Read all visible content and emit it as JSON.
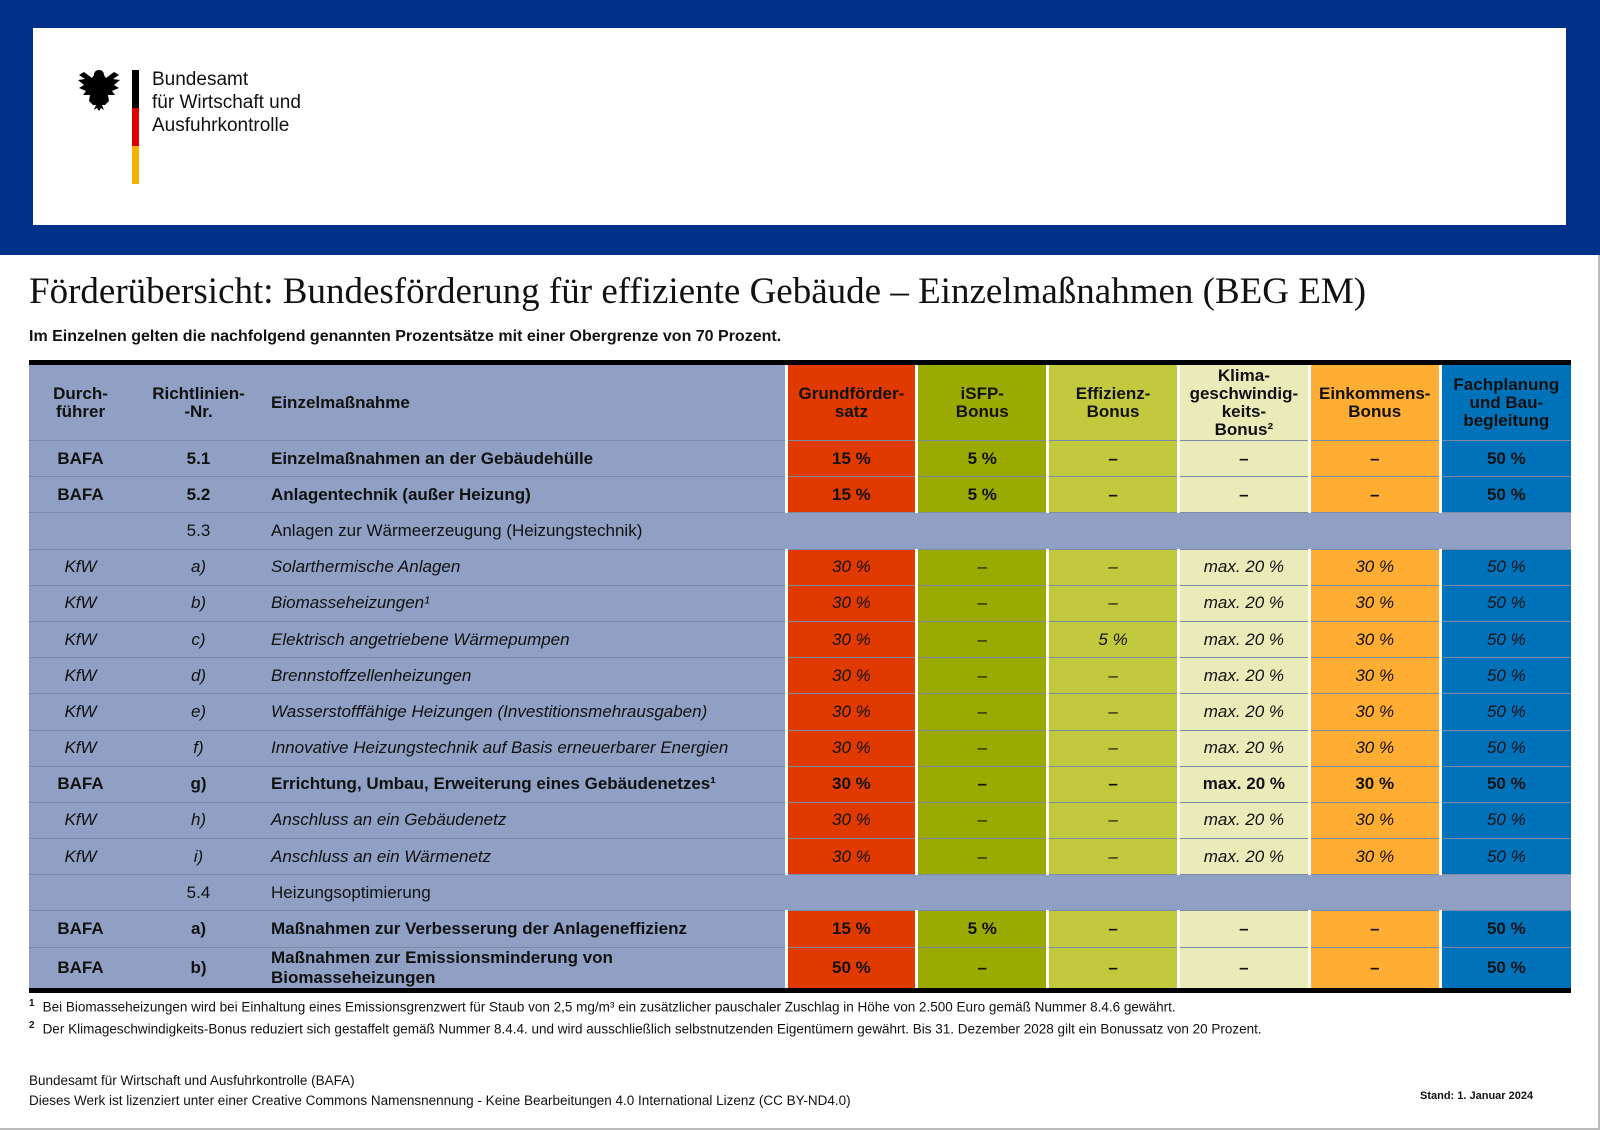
{
  "header": {
    "logo_lines": [
      "Bundesamt",
      "für Wirtschaft und",
      "Ausfuhrkontrolle"
    ],
    "colors": {
      "bar": "#003087",
      "flag": [
        "#000000",
        "#dd0000",
        "#ffcc00"
      ]
    }
  },
  "title": "Förderübersicht: Bundesförderung für effiziente Gebäude – Einzelmaßnahmen (BEG EM)",
  "subtitle": "Im Einzelnen gelten die nachfolgend genannten Prozentsätze mit einer Obergrenze von 70 Prozent.",
  "table": {
    "headers": [
      "Durch-führer",
      "Richtlinien--Nr.",
      "Einzelmaßnahme",
      "Grundförder-satz",
      "iSFP-Bonus",
      "Effizienz-Bonus",
      "Klima-geschwindig-keits-Bonus²",
      "Einkommens-Bonus",
      "Fachplanung und Bau-begleitung"
    ],
    "column_colors": [
      "#e03a00",
      "#9aaa00",
      "#c3c93c",
      "#e9ebb9",
      "#ffad33",
      "#0072b9"
    ],
    "rows": [
      {
        "style": "bold",
        "cells": [
          "BAFA",
          "5.1",
          "Einzelmaßnahmen an der Gebäudehülle",
          "15 %",
          "5 %",
          "–",
          "–",
          "–",
          "50 %"
        ]
      },
      {
        "style": "bold",
        "cells": [
          "BAFA",
          "5.2",
          "Anlagentechnik (außer Heizung)",
          "15 %",
          "5 %",
          "–",
          "–",
          "–",
          "50 %"
        ]
      },
      {
        "style": "sec",
        "cells": [
          "",
          "5.3",
          "Anlagen zur Wärmeerzeugung (Heizungstechnik)"
        ]
      },
      {
        "style": "ital",
        "cells": [
          "KfW",
          "a)",
          "Solarthermische Anlagen",
          "30 %",
          "–",
          "–",
          "max. 20 %",
          "30 %",
          "50 %"
        ]
      },
      {
        "style": "ital",
        "cells": [
          "KfW",
          "b)",
          "Biomasseheizungen¹",
          "30 %",
          "–",
          "–",
          "max. 20 %",
          "30 %",
          "50 %"
        ]
      },
      {
        "style": "ital",
        "cells": [
          "KfW",
          "c)",
          "Elektrisch angetriebene Wärmepumpen",
          "30 %",
          "–",
          "5 %",
          "max. 20 %",
          "30 %",
          "50 %"
        ]
      },
      {
        "style": "ital",
        "cells": [
          "KfW",
          "d)",
          "Brennstoffzellenheizungen",
          "30 %",
          "–",
          "–",
          "max. 20 %",
          "30 %",
          "50 %"
        ]
      },
      {
        "style": "ital",
        "cells": [
          "KfW",
          "e)",
          "Wasserstofffähige Heizungen (Investitionsmehrausgaben)",
          "30 %",
          "–",
          "–",
          "max. 20 %",
          "30 %",
          "50 %"
        ]
      },
      {
        "style": "ital",
        "cells": [
          "KfW",
          "f)",
          "Innovative Heizungstechnik auf Basis erneuerbarer Energien",
          "30 %",
          "–",
          "–",
          "max. 20 %",
          "30 %",
          "50 %"
        ]
      },
      {
        "style": "bold",
        "cells": [
          "BAFA",
          "g)",
          "Errichtung, Umbau, Erweiterung eines Gebäudenetzes¹",
          "30 %",
          "–",
          "–",
          "max. 20 %",
          "30 %",
          "50 %"
        ]
      },
      {
        "style": "ital",
        "cells": [
          "KfW",
          "h)",
          "Anschluss an ein Gebäudenetz",
          "30 %",
          "–",
          "–",
          "max. 20 %",
          "30 %",
          "50 %"
        ]
      },
      {
        "style": "ital",
        "cells": [
          "KfW",
          "i)",
          "Anschluss an ein Wärmenetz",
          "30 %",
          "–",
          "–",
          "max. 20 %",
          "30 %",
          "50 %"
        ]
      },
      {
        "style": "sec",
        "cells": [
          "",
          "5.4",
          "Heizungsoptimierung"
        ]
      },
      {
        "style": "bold",
        "cells": [
          "BAFA",
          "a)",
          "Maßnahmen zur Verbesserung der Anlageneffizienz",
          "15 %",
          "5 %",
          "–",
          "–",
          "–",
          "50 %"
        ]
      },
      {
        "style": "bold",
        "cells": [
          "BAFA",
          "b)",
          "Maßnahmen zur Emissionsminderung von Biomasseheizungen",
          "50 %",
          "–",
          "–",
          "–",
          "–",
          "50 %"
        ]
      }
    ]
  },
  "footnotes": [
    {
      "mark": "1",
      "text": "Bei Biomasseheizungen wird bei Einhaltung eines Emissionsgrenzwert für Staub von 2,5 mg/m³ ein zusätzlicher pauschaler Zuschlag in Höhe von 2.500 Euro gemäß Nummer 8.4.6 gewährt."
    },
    {
      "mark": "2",
      "text": "Der Klimageschwindigkeits-Bonus reduziert sich gestaffelt gemäß Nummer 8.4.4. und wird ausschließlich selbstnutzenden Eigentümern gewährt. Bis 31. Dezember 2028 gilt ein Bonussatz von 20 Prozent."
    }
  ],
  "footer": {
    "line1": "Bundesamt für Wirtschaft und Ausfuhrkontrolle (BAFA)",
    "line2": "Dieses Werk ist lizenziert unter einer Creative Commons Namensnennung - Keine Bearbeitungen 4.0 International Lizenz (CC BY-ND4.0)",
    "stand": "Stand: 1. Januar 2024"
  }
}
